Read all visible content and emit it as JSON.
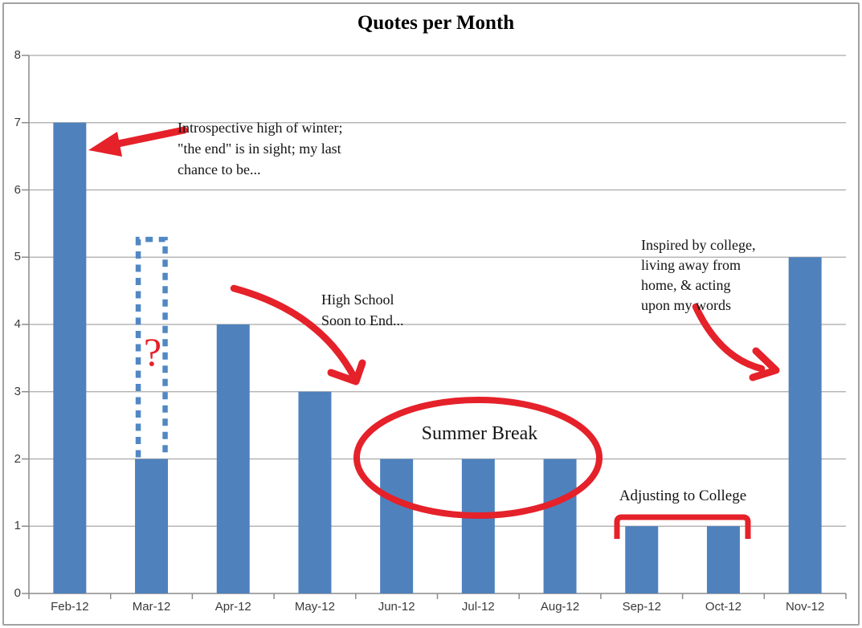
{
  "chart_data": {
    "type": "bar",
    "title": "Quotes per Month",
    "categories": [
      "Feb-12",
      "Mar-12",
      "Apr-12",
      "May-12",
      "Jun-12",
      "Jul-12",
      "Aug-12",
      "Sep-12",
      "Oct-12",
      "Nov-12"
    ],
    "values": [
      7,
      2,
      4,
      3,
      2,
      2,
      2,
      1,
      1,
      5
    ],
    "xlabel": "",
    "ylabel": "",
    "ylim": [
      0,
      8
    ],
    "yticks": [
      0,
      1,
      2,
      3,
      4,
      5,
      6,
      7,
      8
    ],
    "grid": true,
    "legend": false,
    "bar_color": "#4F81BD",
    "gridline_color": "#A9A9A9",
    "axis_color": "#8C8C8C",
    "tick_label_color": "#3A3A3A"
  },
  "annotations": {
    "accent_red": "#E5212A",
    "ghost_blue": "#5188C4",
    "winter_note": "Introspective high of winter;\n\"the end\" is in sight; my last\nchance to be...",
    "question_mark": "?",
    "high_school_note": "High School\nSoon to End...",
    "summer_label": "Summer Break",
    "adjusting_label": "Adjusting to College",
    "college_note": "Inspired by college,\nliving away from\nhome, & acting\nupon my words",
    "ghost_bar": {
      "category": "Mar-12",
      "implied_value": 5.3
    }
  }
}
